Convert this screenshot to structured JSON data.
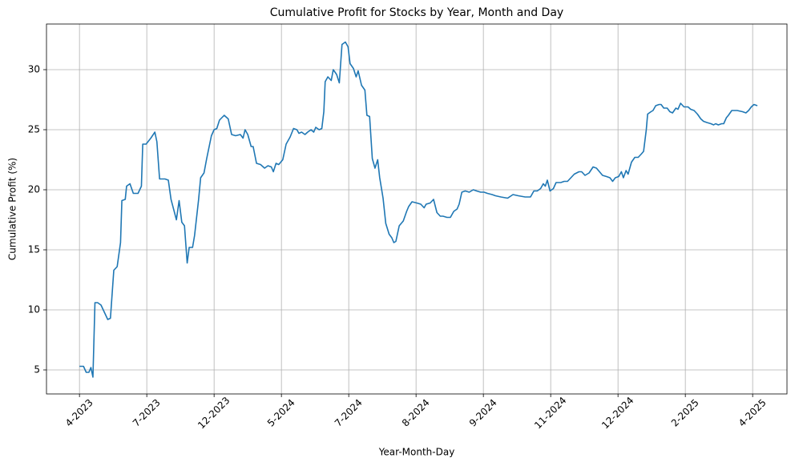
{
  "chart_data": {
    "type": "line",
    "title": "Cumulative Profit for Stocks by Year, Month and Day",
    "x_label": "Year-Month-Day",
    "y_label": "Cumulative Profit (%)",
    "color": "#1f77b4",
    "grid": true,
    "xlim": [
      -0.49,
      10.51
    ],
    "ylim": [
      3,
      33.8
    ],
    "yticks": [
      5,
      10,
      15,
      20,
      25,
      30
    ],
    "xticks": [
      {
        "value": 0,
        "label": "4-2023"
      },
      {
        "value": 1,
        "label": "7-2023"
      },
      {
        "value": 2,
        "label": "12-2023"
      },
      {
        "value": 3,
        "label": "5-2024"
      },
      {
        "value": 4,
        "label": "7-2024"
      },
      {
        "value": 5,
        "label": "8-2024"
      },
      {
        "value": 6,
        "label": "9-2024"
      },
      {
        "value": 7,
        "label": "11-2024"
      },
      {
        "value": 8,
        "label": "12-2024"
      },
      {
        "value": 9,
        "label": "2-2025"
      },
      {
        "value": 10,
        "label": "4-2025"
      }
    ],
    "x": [
      0,
      0.06,
      0.1,
      0.14,
      0.17,
      0.2,
      0.23,
      0.27,
      0.32,
      0.37,
      0.42,
      0.46,
      0.51,
      0.56,
      0.61,
      0.63,
      0.68,
      0.7,
      0.75,
      0.8,
      0.87,
      0.92,
      0.94,
      0.99,
      1.06,
      1.12,
      1.15,
      1.19,
      1.27,
      1.32,
      1.36,
      1.44,
      1.48,
      1.52,
      1.56,
      1.6,
      1.63,
      1.68,
      1.71,
      1.77,
      1.8,
      1.85,
      1.89,
      1.96,
      2,
      2.04,
      2.08,
      2.15,
      2.21,
      2.26,
      2.32,
      2.39,
      2.43,
      2.46,
      2.5,
      2.55,
      2.58,
      2.63,
      2.69,
      2.75,
      2.8,
      2.85,
      2.88,
      2.92,
      2.96,
      3.02,
      3.07,
      3.13,
      3.18,
      3.23,
      3.26,
      3.3,
      3.35,
      3.39,
      3.44,
      3.48,
      3.51,
      3.56,
      3.6,
      3.63,
      3.65,
      3.69,
      3.74,
      3.77,
      3.82,
      3.86,
      3.9,
      3.95,
      3.99,
      4.02,
      4.07,
      4.11,
      4.14,
      4.19,
      4.24,
      4.27,
      4.31,
      4.35,
      4.39,
      4.43,
      4.46,
      4.51,
      4.55,
      4.6,
      4.64,
      4.67,
      4.7,
      4.75,
      4.81,
      4.86,
      4.89,
      4.94,
      5.01,
      5.07,
      5.12,
      5.15,
      5.21,
      5.26,
      5.31,
      5.36,
      5.4,
      5.46,
      5.51,
      5.56,
      5.61,
      5.64,
      5.68,
      5.73,
      5.79,
      5.85,
      5.9,
      5.96,
      6.01,
      6.06,
      6.13,
      6.18,
      6.26,
      6.36,
      6.44,
      6.52,
      6.62,
      6.7,
      6.75,
      6.8,
      6.85,
      6.89,
      6.92,
      6.95,
      6.99,
      7.04,
      7.08,
      7.15,
      7.2,
      7.25,
      7.3,
      7.35,
      7.42,
      7.46,
      7.51,
      7.57,
      7.63,
      7.68,
      7.74,
      7.77,
      7.83,
      7.88,
      7.92,
      7.96,
      8.01,
      8.05,
      8.08,
      8.12,
      8.15,
      8.2,
      8.25,
      8.3,
      8.35,
      8.38,
      8.42,
      8.44,
      8.49,
      8.52,
      8.56,
      8.61,
      8.64,
      8.68,
      8.73,
      8.77,
      8.81,
      8.86,
      8.89,
      8.93,
      8.98,
      9.04,
      9.08,
      9.13,
      9.18,
      9.23,
      9.27,
      9.32,
      9.38,
      9.42,
      9.45,
      9.49,
      9.54,
      9.57,
      9.61,
      9.64,
      9.69,
      9.77,
      9.85,
      9.9,
      9.94,
      9.98,
      10.02,
      10.07
    ],
    "values": [
      5.3,
      5.3,
      4.8,
      4.8,
      5.2,
      4.4,
      10.6,
      10.6,
      10.4,
      9.8,
      9.2,
      9.3,
      13.3,
      13.6,
      15.6,
      19.1,
      19.2,
      20.3,
      20.5,
      19.7,
      19.7,
      20.3,
      23.8,
      23.8,
      24.3,
      24.8,
      24.0,
      20.9,
      20.9,
      20.8,
      19.2,
      17.5,
      19.1,
      17.3,
      17.0,
      13.9,
      15.2,
      15.2,
      16.2,
      19.2,
      21.0,
      21.4,
      22.6,
      24.5,
      25.0,
      25.1,
      25.8,
      26.2,
      25.9,
      24.6,
      24.5,
      24.6,
      24.3,
      25.0,
      24.6,
      23.6,
      23.6,
      22.2,
      22.1,
      21.8,
      22.0,
      21.9,
      21.5,
      22.2,
      22.1,
      22.5,
      23.8,
      24.4,
      25.1,
      25.0,
      24.7,
      24.8,
      24.6,
      24.8,
      25.0,
      24.8,
      25.2,
      25.0,
      25.1,
      26.5,
      29.0,
      29.4,
      29.1,
      30.0,
      29.6,
      28.9,
      32.1,
      32.3,
      31.9,
      30.5,
      30.1,
      29.4,
      29.9,
      28.7,
      28.3,
      26.2,
      26.1,
      22.6,
      21.8,
      22.5,
      21.0,
      19.3,
      17.2,
      16.3,
      16.0,
      15.6,
      15.7,
      17.0,
      17.4,
      18.2,
      18.6,
      19.0,
      18.9,
      18.8,
      18.5,
      18.8,
      18.9,
      19.2,
      18.1,
      17.8,
      17.8,
      17.7,
      17.7,
      18.2,
      18.4,
      18.8,
      19.8,
      19.9,
      19.8,
      20.0,
      19.9,
      19.8,
      19.8,
      19.7,
      19.6,
      19.5,
      19.4,
      19.3,
      19.6,
      19.5,
      19.4,
      19.4,
      19.9,
      19.9,
      20.1,
      20.5,
      20.3,
      20.8,
      19.9,
      20.1,
      20.6,
      20.6,
      20.7,
      20.7,
      21.0,
      21.3,
      21.5,
      21.5,
      21.2,
      21.4,
      21.9,
      21.8,
      21.4,
      21.2,
      21.1,
      21.0,
      20.7,
      21.0,
      21.1,
      21.5,
      21.0,
      21.6,
      21.3,
      22.3,
      22.7,
      22.7,
      23.0,
      23.2,
      25.0,
      26.3,
      26.5,
      26.6,
      27.0,
      27.1,
      27.1,
      26.8,
      26.8,
      26.5,
      26.4,
      26.8,
      26.7,
      27.2,
      26.9,
      26.9,
      26.7,
      26.6,
      26.3,
      25.9,
      25.7,
      25.6,
      25.5,
      25.4,
      25.5,
      25.4,
      25.5,
      25.5,
      26.0,
      26.2,
      26.6,
      26.6,
      26.5,
      26.4,
      26.6,
      26.9,
      27.1,
      27.0
    ]
  }
}
